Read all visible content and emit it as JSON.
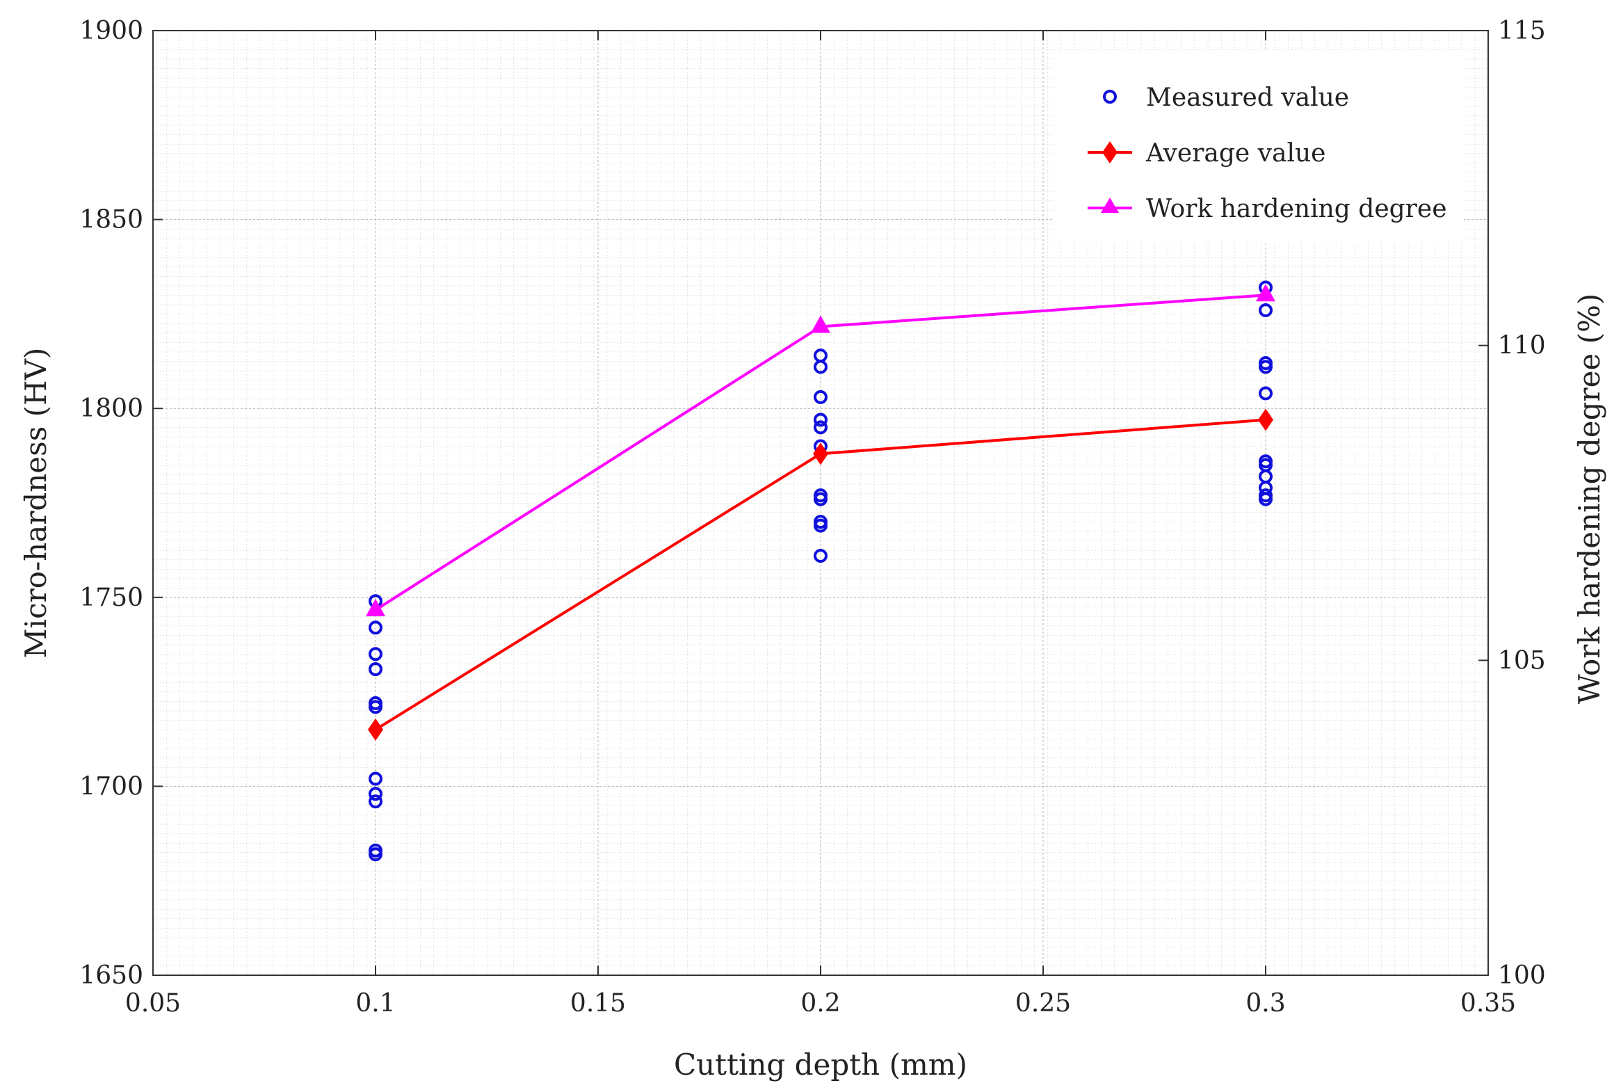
{
  "chart_data": {
    "type": "scatter",
    "title": "",
    "xlabel": "Cutting depth (mm)",
    "ylabel": "Micro-hardness (HV)",
    "y2label": "Work hardening degree (%)",
    "xlim": [
      0.05,
      0.35
    ],
    "ylim": [
      1650,
      1900
    ],
    "y2lim": [
      100,
      115
    ],
    "x_ticks": [
      0.05,
      0.1,
      0.15,
      0.2,
      0.25,
      0.3,
      0.35
    ],
    "x_tick_labels": [
      "0.05",
      "0.1",
      "0.15",
      "0.2",
      "0.25",
      "0.3",
      "0.35"
    ],
    "y_ticks": [
      1650,
      1700,
      1750,
      1800,
      1850,
      1900
    ],
    "y_tick_labels": [
      "1650",
      "1700",
      "1750",
      "1800",
      "1850",
      "1900"
    ],
    "y2_ticks": [
      100,
      105,
      110,
      115
    ],
    "y2_tick_labels": [
      "100",
      "105",
      "110",
      "115"
    ],
    "grid": true,
    "legend_position": "top-right",
    "series": [
      {
        "name": "Measured value",
        "kind": "scatter",
        "marker": "circle",
        "axis": "left",
        "color": "#1010dd",
        "points": [
          [
            0.1,
            1749
          ],
          [
            0.1,
            1742
          ],
          [
            0.1,
            1735
          ],
          [
            0.1,
            1731
          ],
          [
            0.1,
            1722
          ],
          [
            0.1,
            1721
          ],
          [
            0.1,
            1702
          ],
          [
            0.1,
            1698
          ],
          [
            0.1,
            1696
          ],
          [
            0.1,
            1683
          ],
          [
            0.1,
            1682
          ],
          [
            0.2,
            1814
          ],
          [
            0.2,
            1811
          ],
          [
            0.2,
            1803
          ],
          [
            0.2,
            1797
          ],
          [
            0.2,
            1795
          ],
          [
            0.2,
            1790
          ],
          [
            0.2,
            1777
          ],
          [
            0.2,
            1776
          ],
          [
            0.2,
            1770
          ],
          [
            0.2,
            1769
          ],
          [
            0.2,
            1761
          ],
          [
            0.3,
            1832
          ],
          [
            0.3,
            1826
          ],
          [
            0.3,
            1812
          ],
          [
            0.3,
            1811
          ],
          [
            0.3,
            1804
          ],
          [
            0.3,
            1786
          ],
          [
            0.3,
            1785
          ],
          [
            0.3,
            1782
          ],
          [
            0.3,
            1779
          ],
          [
            0.3,
            1777
          ],
          [
            0.3,
            1776
          ]
        ]
      },
      {
        "name": "Average value",
        "kind": "line",
        "marker": "diamond",
        "axis": "left",
        "color": "#ff0000",
        "x": [
          0.1,
          0.2,
          0.3
        ],
        "values": [
          1715,
          1788,
          1797
        ]
      },
      {
        "name": "Work hardening degree",
        "kind": "line",
        "marker": "triangle",
        "axis": "right",
        "color": "#ff00ff",
        "x": [
          0.1,
          0.2,
          0.3
        ],
        "values": [
          105.8,
          110.3,
          110.8
        ]
      }
    ]
  }
}
